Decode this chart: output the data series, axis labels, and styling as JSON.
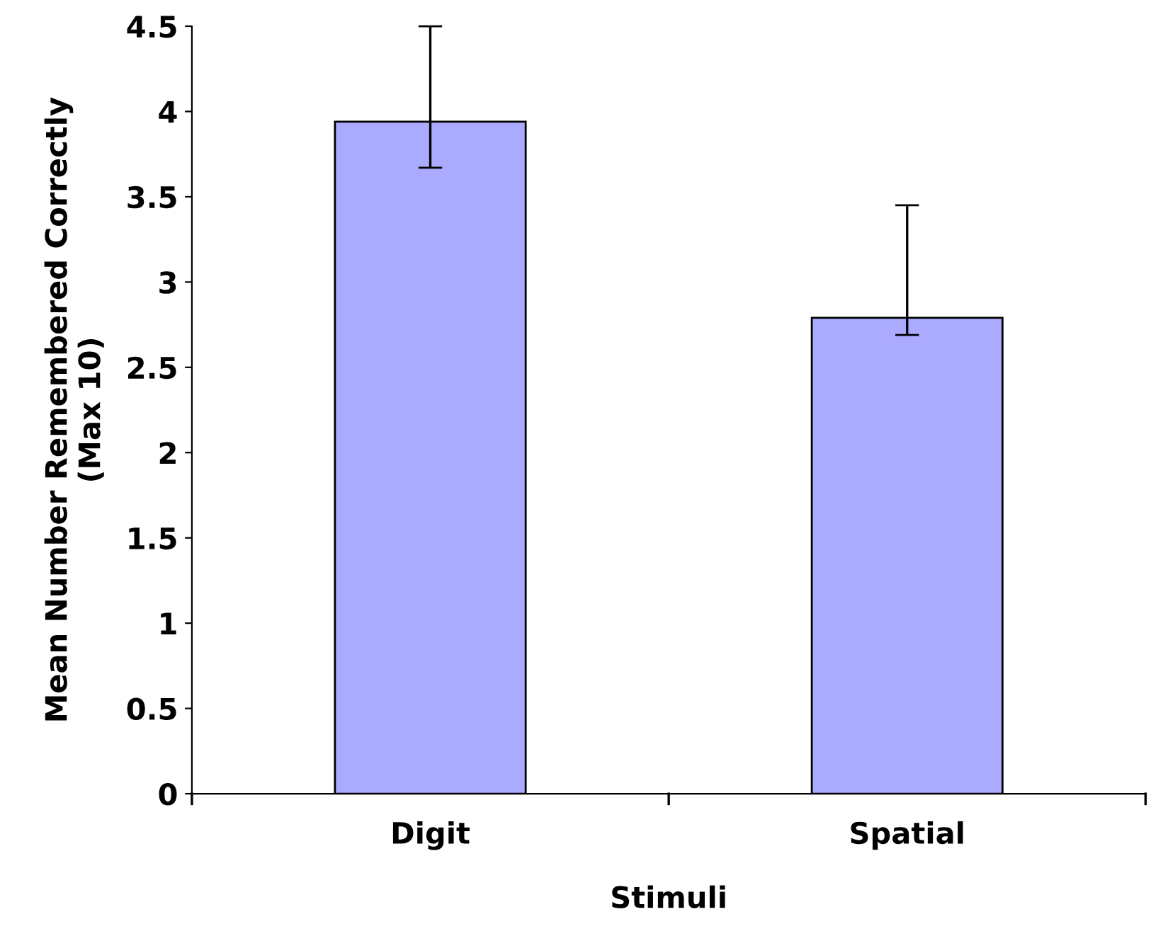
{
  "chart_data": {
    "type": "bar",
    "xlabel": "Stimuli",
    "ylabel": "Mean Number Remembered Correctly\n(Max 10)",
    "categories": [
      "Digit",
      "Spatial"
    ],
    "values": [
      3.94,
      2.79
    ],
    "errors": [
      [
        3.67,
        4.5
      ],
      [
        2.69,
        3.45
      ]
    ],
    "color": "#aaaaff",
    "ylim": [
      0,
      4.5
    ],
    "yticks": [
      0,
      0.5,
      1,
      1.5,
      2,
      2.5,
      3,
      3.5,
      4,
      4.5
    ],
    "grid": false,
    "legend": false
  }
}
